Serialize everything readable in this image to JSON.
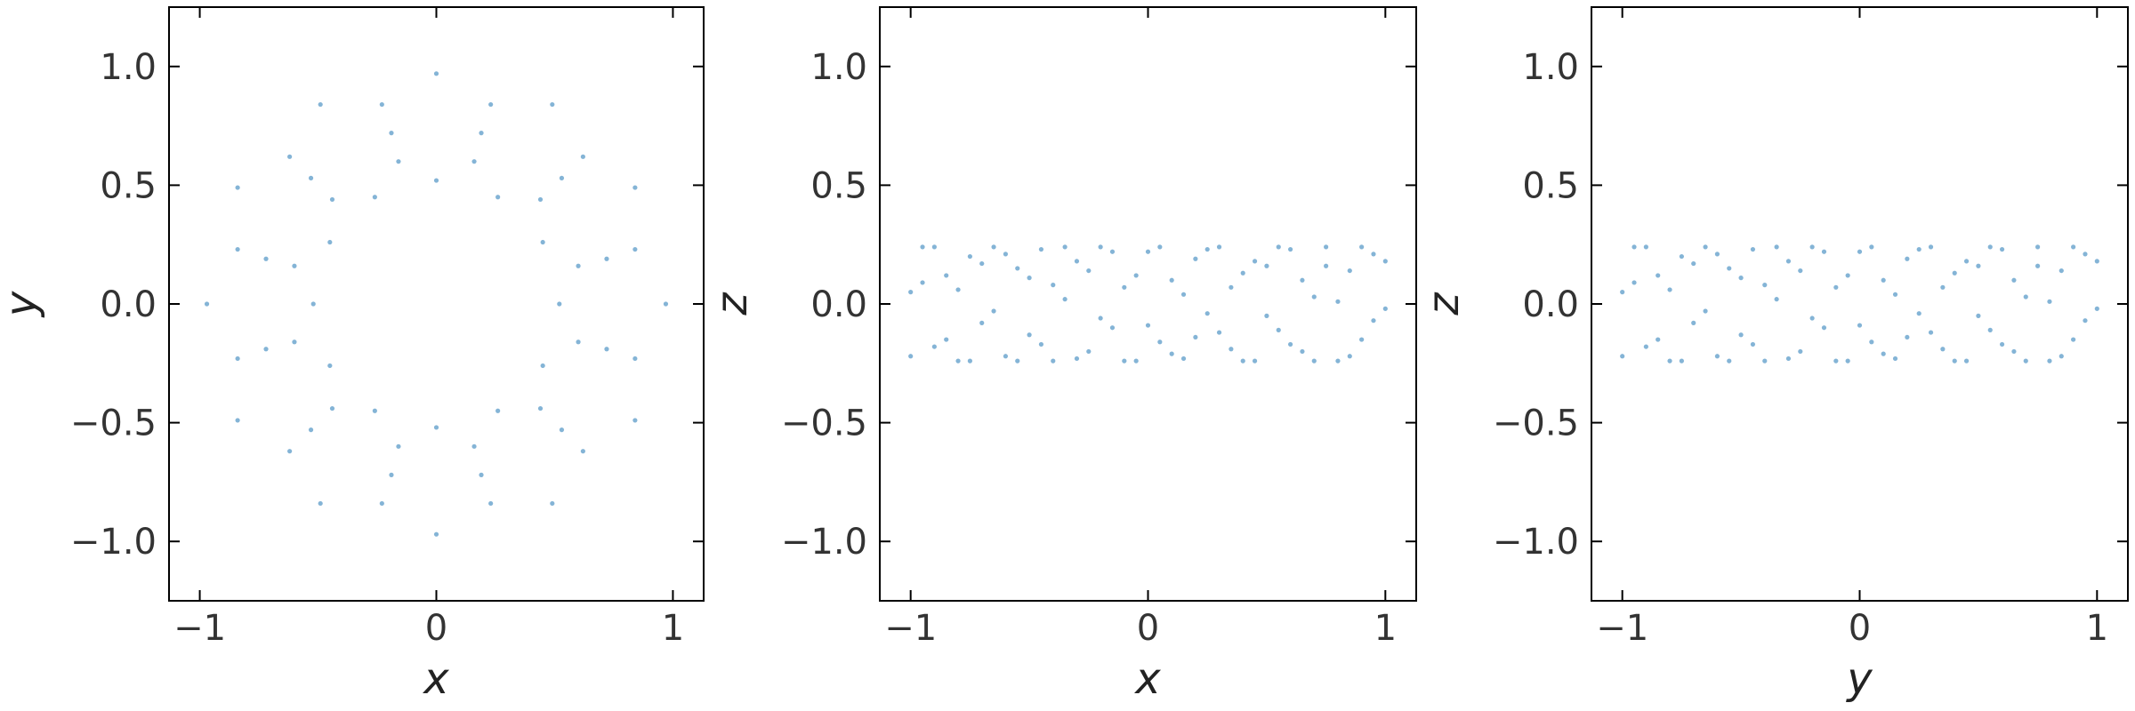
{
  "chart_data": [
    {
      "type": "scatter",
      "xlabel": "x",
      "ylabel": "y",
      "color": "#1f77b4",
      "xlim": [
        -1.13,
        1.13
      ],
      "ylim": [
        -1.25,
        1.25
      ],
      "xticks": [
        {
          "value": -1,
          "label": "−1"
        },
        0,
        {
          "value": 1,
          "label": "1"
        }
      ],
      "yticks": [
        {
          "value": -1,
          "label": "−1.0"
        },
        {
          "value": -0.5,
          "label": "−0.5"
        },
        {
          "value": 0,
          "label": "0.0"
        },
        0.5,
        {
          "value": 1,
          "label": "1.0"
        }
      ],
      "x": [
        0.52,
        0.45,
        0.26,
        0,
        -0.26,
        -0.45,
        -0.52,
        -0.45,
        -0.26,
        0,
        0.26,
        0.45,
        0.72,
        0.53,
        0.19,
        -0.19,
        -0.53,
        -0.72,
        -0.72,
        -0.53,
        -0.19,
        0.19,
        0.53,
        0.72,
        0.97,
        0.84,
        0.49,
        0,
        -0.49,
        -0.84,
        -0.97,
        -0.84,
        -0.49,
        0,
        0.49,
        0.84,
        0.6,
        0.44,
        0.16,
        -0.16,
        -0.44,
        -0.6,
        -0.6,
        -0.44,
        -0.16,
        0.16,
        0.44,
        0.6,
        0.84,
        0.62,
        0.23,
        -0.23,
        -0.62,
        -0.84,
        -0.84,
        -0.62,
        -0.23,
        0.23,
        0.62,
        0.84
      ],
      "values": [
        0,
        0.26,
        0.45,
        0.52,
        0.45,
        0.26,
        0,
        -0.26,
        -0.45,
        -0.52,
        -0.45,
        -0.26,
        0.19,
        0.53,
        0.72,
        0.72,
        0.53,
        0.19,
        -0.19,
        -0.53,
        -0.72,
        -0.72,
        -0.53,
        -0.19,
        0,
        0.49,
        0.84,
        0.97,
        0.84,
        0.49,
        0,
        -0.49,
        -0.84,
        -0.97,
        -0.84,
        -0.49,
        0.16,
        0.44,
        0.6,
        0.6,
        0.44,
        0.16,
        -0.16,
        -0.44,
        -0.6,
        -0.6,
        -0.44,
        -0.16,
        0.23,
        0.62,
        0.84,
        0.84,
        0.62,
        0.23,
        -0.23,
        -0.62,
        -0.84,
        -0.84,
        -0.62,
        -0.23
      ]
    },
    {
      "type": "scatter",
      "xlabel": "x",
      "ylabel": "z",
      "color": "#1f77b4",
      "xlim": [
        -1.13,
        1.13
      ],
      "ylim": [
        -1.25,
        1.25
      ],
      "xticks": [
        {
          "value": -1,
          "label": "−1"
        },
        0,
        {
          "value": 1,
          "label": "1"
        }
      ],
      "yticks": [
        {
          "value": -1,
          "label": "−1.0"
        },
        {
          "value": -0.5,
          "label": "−0.5"
        },
        {
          "value": 0,
          "label": "0.0"
        },
        0.5,
        {
          "value": 1,
          "label": "1.0"
        }
      ],
      "x": [
        -1.0,
        -0.95,
        -0.9,
        -0.85,
        -0.8,
        -0.75,
        -0.7,
        -0.65,
        -0.6,
        -0.55,
        -0.5,
        -0.45,
        -0.4,
        -0.35,
        -0.3,
        -0.25,
        -0.2,
        -0.15,
        -0.1,
        -0.05,
        0,
        0.05,
        0.1,
        0.15,
        0.2,
        0.25,
        0.3,
        0.35,
        0.4,
        0.45,
        0.5,
        0.55,
        0.6,
        0.65,
        0.7,
        0.75,
        0.8,
        0.85,
        0.9,
        0.95,
        1.0,
        -1.0,
        -0.95,
        -0.9,
        -0.85,
        -0.8,
        -0.75,
        -0.7,
        -0.65,
        -0.6,
        -0.55,
        -0.5,
        -0.45,
        -0.4,
        -0.35,
        -0.3,
        -0.25,
        -0.2,
        -0.15,
        -0.1,
        -0.05,
        0,
        0.05,
        0.1,
        0.15,
        0.2,
        0.25,
        0.3,
        0.35,
        0.4,
        0.45,
        0.5,
        0.55,
        0.6,
        0.65,
        0.7,
        0.75,
        0.8,
        0.85,
        0.9,
        0.95,
        1.0
      ],
      "values": [
        0.05,
        0.24,
        -0.18,
        0.12,
        -0.24,
        0.2,
        -0.08,
        0.24,
        -0.22,
        0.15,
        -0.13,
        0.23,
        -0.24,
        0.02,
        0.18,
        -0.2,
        0.24,
        -0.1,
        0.07,
        -0.24,
        0.22,
        -0.16,
        0.1,
        -0.23,
        0.19,
        -0.04,
        0.24,
        -0.19,
        0.13,
        -0.24,
        0.16,
        -0.11,
        0.23,
        -0.2,
        0.03,
        0.24,
        -0.24,
        0.14,
        -0.15,
        0.21,
        -0.02,
        -0.22,
        0.09,
        0.24,
        -0.15,
        0.06,
        -0.24,
        0.17,
        -0.03,
        0.21,
        -0.24,
        0.11,
        -0.17,
        0.08,
        0.24,
        -0.23,
        0.14,
        -0.06,
        0.22,
        -0.24,
        0.12,
        -0.09,
        0.24,
        -0.21,
        0.04,
        -0.14,
        0.23,
        -0.12,
        0.07,
        -0.24,
        0.18,
        -0.05,
        0.24,
        -0.17,
        0.1,
        -0.24,
        0.16,
        0.01,
        -0.22,
        0.24,
        -0.07,
        0.18
      ]
    },
    {
      "type": "scatter",
      "xlabel": "y",
      "ylabel": "z",
      "color": "#1f77b4",
      "xlim": [
        -1.13,
        1.13
      ],
      "ylim": [
        -1.25,
        1.25
      ],
      "xticks": [
        {
          "value": -1,
          "label": "−1"
        },
        0,
        {
          "value": 1,
          "label": "1"
        }
      ],
      "yticks": [
        {
          "value": -1,
          "label": "−1.0"
        },
        {
          "value": -0.5,
          "label": "−0.5"
        },
        {
          "value": 0,
          "label": "0.0"
        },
        0.5,
        {
          "value": 1,
          "label": "1.0"
        }
      ],
      "x": [
        -1.0,
        -0.95,
        -0.9,
        -0.85,
        -0.8,
        -0.75,
        -0.7,
        -0.65,
        -0.6,
        -0.55,
        -0.5,
        -0.45,
        -0.4,
        -0.35,
        -0.3,
        -0.25,
        -0.2,
        -0.15,
        -0.1,
        -0.05,
        0,
        0.05,
        0.1,
        0.15,
        0.2,
        0.25,
        0.3,
        0.35,
        0.4,
        0.45,
        0.5,
        0.55,
        0.6,
        0.65,
        0.7,
        0.75,
        0.8,
        0.85,
        0.9,
        0.95,
        1.0,
        -1.0,
        -0.95,
        -0.9,
        -0.85,
        -0.8,
        -0.75,
        -0.7,
        -0.65,
        -0.6,
        -0.55,
        -0.5,
        -0.45,
        -0.4,
        -0.35,
        -0.3,
        -0.25,
        -0.2,
        -0.15,
        -0.1,
        -0.05,
        0,
        0.05,
        0.1,
        0.15,
        0.2,
        0.25,
        0.3,
        0.35,
        0.4,
        0.45,
        0.5,
        0.55,
        0.6,
        0.65,
        0.7,
        0.75,
        0.8,
        0.85,
        0.9,
        0.95,
        1.0
      ],
      "values": [
        -0.22,
        0.09,
        0.24,
        -0.15,
        0.06,
        -0.24,
        0.17,
        -0.03,
        0.21,
        -0.24,
        0.11,
        -0.17,
        0.08,
        0.24,
        -0.23,
        0.14,
        -0.06,
        0.22,
        -0.24,
        0.12,
        -0.09,
        0.24,
        -0.21,
        0.04,
        -0.14,
        0.23,
        -0.12,
        0.07,
        -0.24,
        0.18,
        -0.05,
        0.24,
        -0.17,
        0.1,
        -0.24,
        0.16,
        0.01,
        -0.22,
        0.24,
        -0.07,
        0.18,
        0.05,
        0.24,
        -0.18,
        0.12,
        -0.24,
        0.2,
        -0.08,
        0.24,
        -0.22,
        0.15,
        -0.13,
        0.23,
        -0.24,
        0.02,
        0.18,
        -0.2,
        0.24,
        -0.1,
        0.07,
        -0.24,
        0.22,
        -0.16,
        0.1,
        -0.23,
        0.19,
        -0.04,
        0.24,
        -0.19,
        0.13,
        -0.24,
        0.16,
        -0.11,
        0.23,
        -0.2,
        0.03,
        0.24,
        -0.24,
        0.14,
        -0.15,
        0.21,
        -0.02
      ]
    }
  ]
}
